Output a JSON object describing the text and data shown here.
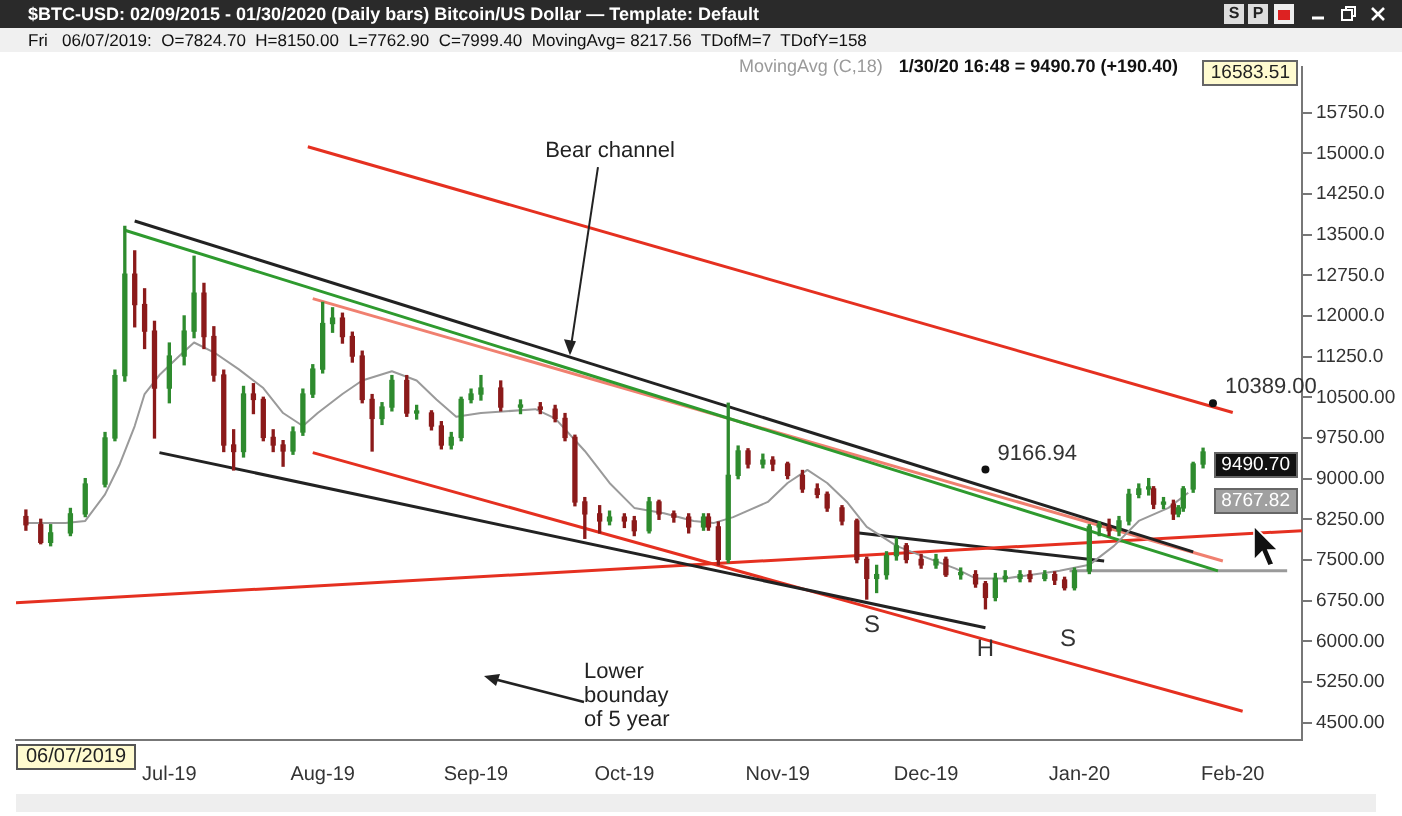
{
  "chart_data": {
    "type": "candlestick",
    "title": "$BTC-USD: 02/09/2015 - 01/30/2020 (Daily bars)   Bitcoin/US Dollar — Template: Default",
    "subtitle": "Fri   06/07/2019:  O=7824.70  H=8150.00  L=7762.90  C=7999.40  MovingAvg= 8217.56  TDofM=7  TDofY=158",
    "x": [
      "2019-06-02",
      "2019-06-05",
      "2019-06-07",
      "2019-06-11",
      "2019-06-14",
      "2019-06-18",
      "2019-06-20",
      "2019-06-22",
      "2019-06-24",
      "2019-06-26",
      "2019-06-28",
      "2019-07-01",
      "2019-07-04",
      "2019-07-06",
      "2019-07-08",
      "2019-07-10",
      "2019-07-12",
      "2019-07-14",
      "2019-07-16",
      "2019-07-18",
      "2019-07-20",
      "2019-07-22",
      "2019-07-24",
      "2019-07-26",
      "2019-07-28",
      "2019-07-30",
      "2019-08-01",
      "2019-08-03",
      "2019-08-05",
      "2019-08-07",
      "2019-08-09",
      "2019-08-11",
      "2019-08-13",
      "2019-08-15",
      "2019-08-18",
      "2019-08-20",
      "2019-08-23",
      "2019-08-25",
      "2019-08-27",
      "2019-08-29",
      "2019-08-31",
      "2019-09-02",
      "2019-09-06",
      "2019-09-10",
      "2019-09-14",
      "2019-09-17",
      "2019-09-19",
      "2019-09-21",
      "2019-09-23",
      "2019-09-26",
      "2019-09-28",
      "2019-10-01",
      "2019-10-03",
      "2019-10-06",
      "2019-10-08",
      "2019-10-11",
      "2019-10-14",
      "2019-10-17",
      "2019-10-18",
      "2019-10-20",
      "2019-10-22",
      "2019-10-24",
      "2019-10-26",
      "2019-10-29",
      "2019-10-31",
      "2019-11-03",
      "2019-11-06",
      "2019-11-09",
      "2019-11-11",
      "2019-11-14",
      "2019-11-17",
      "2019-11-19",
      "2019-11-21",
      "2019-11-23",
      "2019-11-25",
      "2019-11-27",
      "2019-11-30",
      "2019-12-03",
      "2019-12-05",
      "2019-12-08",
      "2019-12-11",
      "2019-12-13",
      "2019-12-15",
      "2019-12-17",
      "2019-12-20",
      "2019-12-22",
      "2019-12-25",
      "2019-12-27",
      "2019-12-29",
      "2019-12-31",
      "2020-01-03",
      "2020-01-05",
      "2020-01-07",
      "2020-01-09",
      "2020-01-11",
      "2020-01-13",
      "2020-01-15",
      "2020-01-16",
      "2020-01-18",
      "2020-01-20",
      "2020-01-21",
      "2020-01-22",
      "2020-01-24",
      "2020-01-26"
    ],
    "ohlc": [
      [
        8300,
        8420,
        8050,
        8150
      ],
      [
        8150,
        8250,
        7800,
        7824.7
      ],
      [
        7824.7,
        8150,
        7762.9,
        7999.4
      ],
      [
        7999.4,
        8450,
        7950,
        8350
      ],
      [
        8350,
        9000,
        8300,
        8900
      ],
      [
        8900,
        9850,
        8850,
        9750
      ],
      [
        9750,
        11000,
        9700,
        10900
      ],
      [
        10900,
        13650,
        10800,
        12770
      ],
      [
        12770,
        13200,
        11800,
        12210
      ],
      [
        12210,
        12500,
        11400,
        11720
      ],
      [
        11720,
        11900,
        9750,
        10670
      ],
      [
        10670,
        11500,
        10400,
        11260
      ],
      [
        11260,
        12000,
        11100,
        11720
      ],
      [
        11720,
        13100,
        11600,
        12420
      ],
      [
        12420,
        12600,
        11400,
        11620
      ],
      [
        11620,
        11800,
        10800,
        10910
      ],
      [
        10910,
        11000,
        9500,
        9620
      ],
      [
        9620,
        9900,
        9160,
        9500
      ],
      [
        9500,
        10700,
        9400,
        10560
      ],
      [
        10560,
        10750,
        10200,
        10460
      ],
      [
        10460,
        10500,
        9700,
        9760
      ],
      [
        9760,
        9900,
        9500,
        9620
      ],
      [
        9620,
        9700,
        9230,
        9510
      ],
      [
        9510,
        9950,
        9450,
        9860
      ],
      [
        9860,
        10650,
        9800,
        10560
      ],
      [
        10560,
        11100,
        10500,
        11020
      ],
      [
        11020,
        12250,
        10950,
        11860
      ],
      [
        11860,
        12150,
        11700,
        11960
      ],
      [
        11960,
        12050,
        11500,
        11620
      ],
      [
        11620,
        11700,
        11150,
        11260
      ],
      [
        11260,
        11350,
        10400,
        10460
      ],
      [
        10460,
        10550,
        9510,
        10110
      ],
      [
        10110,
        10400,
        10000,
        10320
      ],
      [
        10320,
        10900,
        10250,
        10810
      ],
      [
        10810,
        10900,
        10150,
        10210
      ],
      [
        10210,
        10350,
        10100,
        10210
      ],
      [
        10210,
        10250,
        9900,
        9970
      ],
      [
        9970,
        10050,
        9550,
        9620
      ],
      [
        9620,
        9850,
        9550,
        9760
      ],
      [
        9760,
        10500,
        9700,
        10460
      ],
      [
        10460,
        10650,
        10400,
        10560
      ],
      [
        10560,
        10900,
        10450,
        10670
      ],
      [
        10670,
        10800,
        10250,
        10320
      ],
      [
        10320,
        10450,
        10200,
        10320
      ],
      [
        10320,
        10400,
        10200,
        10280
      ],
      [
        10280,
        10350,
        10050,
        10110
      ],
      [
        10110,
        10200,
        9700,
        9760
      ],
      [
        9760,
        9800,
        8500,
        8570
      ],
      [
        8570,
        8650,
        7900,
        8350
      ],
      [
        8350,
        8500,
        8000,
        8220
      ],
      [
        8220,
        8400,
        8150,
        8290
      ],
      [
        8290,
        8350,
        8100,
        8220
      ],
      [
        8220,
        8300,
        7950,
        8040
      ],
      [
        8040,
        8650,
        8000,
        8570
      ],
      [
        8570,
        8600,
        8250,
        8350
      ],
      [
        8350,
        8400,
        8200,
        8290
      ],
      [
        8290,
        8350,
        8000,
        8110
      ],
      [
        8110,
        8350,
        8050,
        8290
      ],
      [
        8290,
        8350,
        8050,
        8110
      ],
      [
        8110,
        8200,
        7410,
        7510
      ],
      [
        7510,
        10390,
        7450,
        9060
      ],
      [
        9060,
        9600,
        9000,
        9510
      ],
      [
        9510,
        9550,
        9200,
        9270
      ],
      [
        9270,
        9450,
        9200,
        9340
      ],
      [
        9340,
        9400,
        9150,
        9270
      ],
      [
        9270,
        9300,
        9000,
        9060
      ],
      [
        9060,
        9150,
        8750,
        8810
      ],
      [
        8810,
        8900,
        8650,
        8710
      ],
      [
        8710,
        8750,
        8400,
        8460
      ],
      [
        8460,
        8500,
        8150,
        8220
      ],
      [
        8220,
        8250,
        7450,
        7510
      ],
      [
        7510,
        7550,
        6780,
        7160
      ],
      [
        7160,
        7400,
        6900,
        7230
      ],
      [
        7230,
        7650,
        7150,
        7580
      ],
      [
        7580,
        7900,
        7500,
        7760
      ],
      [
        7760,
        7800,
        7450,
        7510
      ],
      [
        7510,
        7600,
        7350,
        7410
      ],
      [
        7410,
        7600,
        7350,
        7510
      ],
      [
        7510,
        7550,
        7200,
        7230
      ],
      [
        7230,
        7350,
        7150,
        7230
      ],
      [
        7230,
        7300,
        7000,
        7060
      ],
      [
        7060,
        7100,
        6600,
        6810
      ],
      [
        6810,
        7250,
        6750,
        7160
      ],
      [
        7160,
        7300,
        7100,
        7160
      ],
      [
        7160,
        7300,
        7100,
        7230
      ],
      [
        7230,
        7300,
        7100,
        7160
      ],
      [
        7160,
        7300,
        7120,
        7230
      ],
      [
        7230,
        7280,
        7050,
        7130
      ],
      [
        7130,
        7180,
        6950,
        6990
      ],
      [
        6990,
        7350,
        6950,
        7300
      ],
      [
        7300,
        8150,
        7250,
        8110
      ],
      [
        8110,
        8200,
        7950,
        8110
      ],
      [
        8110,
        8250,
        7950,
        8040
      ],
      [
        8040,
        8300,
        7950,
        8220
      ],
      [
        8220,
        8800,
        8150,
        8710
      ],
      [
        8710,
        8900,
        8650,
        8810
      ],
      [
        8810,
        9000,
        8700,
        8810
      ],
      [
        8810,
        8850,
        8450,
        8530
      ],
      [
        8530,
        8650,
        8450,
        8530
      ],
      [
        8530,
        8600,
        8250,
        8350
      ],
      [
        8350,
        8500,
        8300,
        8460
      ],
      [
        8460,
        8850,
        8400,
        8810
      ],
      [
        8810,
        9300,
        8750,
        9270
      ],
      [
        9270,
        9560,
        9200,
        9490.7
      ]
    ],
    "colors": [
      "#8b1a1a",
      "#8b1a1a",
      "#2e8b2e",
      "#2e8b2e",
      "#2e8b2e",
      "#2e8b2e",
      "#2e8b2e",
      "#2e8b2e",
      "#8b1a1a",
      "#8b1a1a",
      "#8b1a1a",
      "#2e8b2e",
      "#2e8b2e",
      "#2e8b2e",
      "#8b1a1a",
      "#8b1a1a",
      "#8b1a1a",
      "#8b1a1a",
      "#2e8b2e",
      "#8b1a1a",
      "#8b1a1a",
      "#8b1a1a",
      "#8b1a1a",
      "#2e8b2e",
      "#2e8b2e",
      "#2e8b2e",
      "#2e8b2e",
      "#2e8b2e",
      "#8b1a1a",
      "#8b1a1a",
      "#8b1a1a",
      "#8b1a1a",
      "#2e8b2e",
      "#2e8b2e",
      "#8b1a1a",
      "#2e8b2e",
      "#8b1a1a",
      "#8b1a1a",
      "#2e8b2e",
      "#2e8b2e",
      "#2e8b2e",
      "#2e8b2e",
      "#8b1a1a",
      "#2e8b2e",
      "#8b1a1a",
      "#8b1a1a",
      "#8b1a1a",
      "#8b1a1a",
      "#8b1a1a",
      "#8b1a1a",
      "#2e8b2e",
      "#8b1a1a",
      "#8b1a1a",
      "#2e8b2e",
      "#8b1a1a",
      "#8b1a1a",
      "#8b1a1a",
      "#2e8b2e",
      "#8b1a1a",
      "#8b1a1a",
      "#2e8b2e",
      "#2e8b2e",
      "#8b1a1a",
      "#2e8b2e",
      "#8b1a1a",
      "#8b1a1a",
      "#8b1a1a",
      "#8b1a1a",
      "#8b1a1a",
      "#8b1a1a",
      "#8b1a1a",
      "#8b1a1a",
      "#2e8b2e",
      "#2e8b2e",
      "#2e8b2e",
      "#8b1a1a",
      "#8b1a1a",
      "#2e8b2e",
      "#8b1a1a",
      "#2e8b2e",
      "#8b1a1a",
      "#8b1a1a",
      "#2e8b2e",
      "#2e8b2e",
      "#2e8b2e",
      "#8b1a1a",
      "#2e8b2e",
      "#8b1a1a",
      "#8b1a1a",
      "#2e8b2e",
      "#2e8b2e",
      "#2e8b2e",
      "#8b1a1a",
      "#2e8b2e",
      "#2e8b2e",
      "#2e8b2e",
      "#2e8b2e",
      "#8b1a1a",
      "#2e8b2e",
      "#8b1a1a",
      "#2e8b2e",
      "#2e8b2e",
      "#2e8b2e",
      "#2e8b2e"
    ],
    "series": [
      {
        "type": "line",
        "name": "MovingAvg (C,18)",
        "color": "#9a9a9a",
        "x": [
          "2019-06-02",
          "2019-06-10",
          "2019-06-14",
          "2019-06-18",
          "2019-06-21",
          "2019-06-24",
          "2019-06-26",
          "2019-06-29",
          "2019-07-03",
          "2019-07-06",
          "2019-07-10",
          "2019-07-15",
          "2019-07-20",
          "2019-07-24",
          "2019-07-28",
          "2019-07-31",
          "2019-08-05",
          "2019-08-09",
          "2019-08-15",
          "2019-08-20",
          "2019-08-24",
          "2019-08-28",
          "2019-09-02",
          "2019-09-13",
          "2019-09-17",
          "2019-09-23",
          "2019-09-28",
          "2019-10-03",
          "2019-10-09",
          "2019-10-15",
          "2019-10-19",
          "2019-10-23",
          "2019-10-30",
          "2019-11-03",
          "2019-11-07",
          "2019-11-11",
          "2019-11-15",
          "2019-11-19",
          "2019-11-25",
          "2019-11-30",
          "2019-12-07",
          "2019-12-11",
          "2019-12-17",
          "2019-12-28",
          "2020-01-03",
          "2020-01-08",
          "2020-01-13",
          "2020-01-19",
          "2020-01-23"
        ],
        "values": [
          8180,
          8180,
          8220,
          8710,
          9270,
          9970,
          10560,
          10910,
          11260,
          11510,
          11330,
          11020,
          10670,
          10210,
          9970,
          10210,
          10560,
          10810,
          10980,
          10810,
          10460,
          10140,
          10210,
          10280,
          10110,
          9510,
          8920,
          8460,
          8360,
          8220,
          8180,
          8290,
          8570,
          8920,
          9160,
          8920,
          8570,
          8110,
          7760,
          7580,
          7340,
          7160,
          7160,
          7300,
          7410,
          7760,
          8220,
          8460,
          8740
        ]
      },
      {
        "type": "line",
        "color": "#e53020",
        "x": [
          "2019-07-29",
          "2020-02-01"
        ],
        "values": [
          15120,
          10220
        ]
      },
      {
        "type": "line",
        "color": "#222222",
        "x": [
          "2019-06-24",
          "2020-01-24"
        ],
        "values": [
          13750,
          7650
        ]
      },
      {
        "type": "line",
        "color": "#2e9a2e",
        "x": [
          "2019-06-22",
          "2020-01-29"
        ],
        "values": [
          13580,
          7300
        ]
      },
      {
        "type": "line",
        "color": "#f08070",
        "x": [
          "2019-07-30",
          "2020-01-30"
        ],
        "values": [
          12320,
          7480
        ]
      },
      {
        "type": "line",
        "color": "#222222",
        "x": [
          "2019-06-29",
          "2019-12-13"
        ],
        "values": [
          9480,
          6250
        ]
      },
      {
        "type": "line",
        "color": "#e53020",
        "x": [
          "2019-07-30",
          "2020-02-03"
        ],
        "values": [
          9480,
          4710
        ]
      },
      {
        "type": "line",
        "color": "#e53020",
        "x": [
          "2019-05-31",
          "2020-02-15"
        ],
        "values": [
          6710,
          8040
        ]
      },
      {
        "type": "line",
        "color": "#9a9a9a",
        "x": [
          "2019-12-30",
          "2020-02-12"
        ],
        "values": [
          7300,
          7300
        ]
      },
      {
        "type": "line",
        "color": "#222222",
        "x": [
          "2019-11-17",
          "2020-01-06"
        ],
        "values": [
          8000,
          7480
        ]
      }
    ],
    "xlim": [
      "2019-05-31",
      "2020-02-15"
    ],
    "xticks": [
      {
        "value": "2019-07-01",
        "label": "Jul-19"
      },
      {
        "value": "2019-08-01",
        "label": "Aug-19"
      },
      {
        "value": "2019-09-01",
        "label": "Sep-19"
      },
      {
        "value": "2019-10-01",
        "label": "Oct-19"
      },
      {
        "value": "2019-11-01",
        "label": "Nov-19"
      },
      {
        "value": "2019-12-01",
        "label": "Dec-19"
      },
      {
        "value": "2020-01-01",
        "label": "Jan-20"
      },
      {
        "value": "2020-02-01",
        "label": "Feb-20"
      }
    ],
    "ylim": [
      4180,
      16583.51
    ],
    "yticks": [
      {
        "value": 4500,
        "label": "4500.00"
      },
      {
        "value": 5250,
        "label": "5250.00"
      },
      {
        "value": 6000,
        "label": "6000.00"
      },
      {
        "value": 6750,
        "label": "6750.00"
      },
      {
        "value": 7500,
        "label": "7500.00"
      },
      {
        "value": 8250,
        "label": "8250.00"
      },
      {
        "value": 9000,
        "label": "9000.00"
      },
      {
        "value": 9750,
        "label": "9750.00"
      },
      {
        "value": 10500,
        "label": "10500.00"
      },
      {
        "value": 11250,
        "label": "11250.0"
      },
      {
        "value": 12000,
        "label": "12000.0"
      },
      {
        "value": 12750,
        "label": "12750.0"
      },
      {
        "value": 13500,
        "label": "13500.0"
      },
      {
        "value": 14250,
        "label": "14250.0"
      },
      {
        "value": 15000,
        "label": "15000.0"
      },
      {
        "value": 15750,
        "label": "15750.0"
      }
    ],
    "annotations": [
      {
        "text": "Bear channel",
        "x": "2019-09-20",
        "y": 11240
      },
      "Lower bounday of 5 year",
      {
        "text": "9166.94",
        "x": "2019-12-13",
        "y": 9166.94
      },
      {
        "text": "10389.00",
        "x": "2020-01-28",
        "y": 10389
      },
      "S",
      {
        "text": "H",
        "x": "2019-12-13",
        "y": 6250
      },
      "S",
      "06/07/2019",
      "16583.51",
      "9490.70",
      "8767.82",
      "1/30/20 16:48 = 9490.70 (+190.40)",
      "S",
      "P"
    ]
  }
}
